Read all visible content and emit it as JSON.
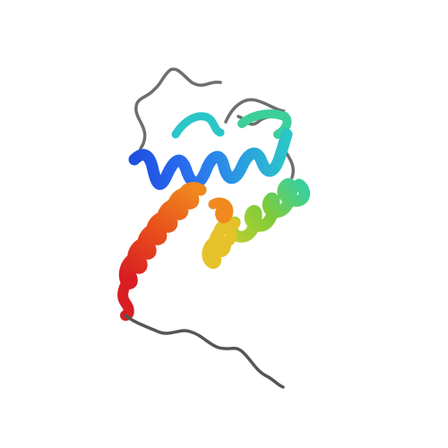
{
  "image": {
    "subject": "protein-ribbon-structure",
    "background": "#ffffff"
  },
  "colors": {
    "coil": "#6e6e6e",
    "n_terminus": "#1f4fe0",
    "blue": "#2a6ff0",
    "light_blue": "#2b9fe0",
    "cyan": "#2bc6c8",
    "teal": "#3ccf9a",
    "green": "#7ecb3a",
    "yellow_green": "#b6cf2e",
    "yellow": "#e6c22a",
    "orange": "#f08a1e",
    "red_orange": "#e8501c",
    "red": "#d81e22",
    "c_terminus": "#555555"
  }
}
